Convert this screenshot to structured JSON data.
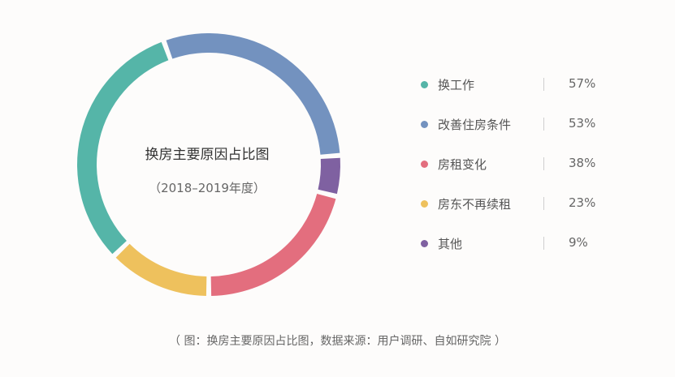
{
  "chart_data": {
    "type": "pie",
    "title": "换房主要原因占比图",
    "subtitle": "（2018–2019年度）",
    "categories": [
      "换工作",
      "改善住房条件",
      "房租变化",
      "房东不再续租",
      "其他"
    ],
    "values": [
      57,
      53,
      38,
      23,
      9
    ],
    "value_labels": [
      "57%",
      "53%",
      "38%",
      "23%",
      "9%"
    ],
    "colors": [
      "#55b5a8",
      "#7392bf",
      "#e36e7e",
      "#eec15d",
      "#7f61a1"
    ],
    "legend_position": "right"
  },
  "caption": "（ 图：换房主要原因占比图，数据来源：用户调研、自如研究院 ）"
}
